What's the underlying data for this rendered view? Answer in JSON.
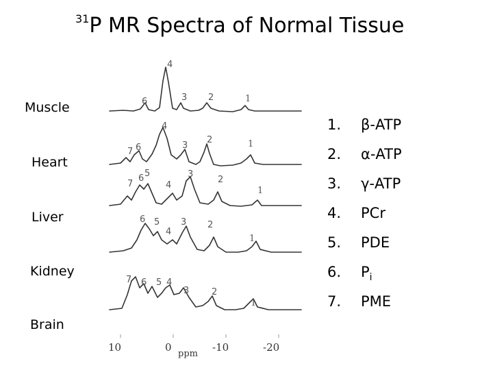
{
  "title": {
    "superscript": "31",
    "text": "P MR Spectra of Normal Tissue"
  },
  "tissues": [
    "Muscle",
    "Heart",
    "Liver",
    "Kidney",
    "Brain"
  ],
  "legend": [
    {
      "num": "1.",
      "label": "β-ATP"
    },
    {
      "num": "2.",
      "label": "α-ATP"
    },
    {
      "num": "3.",
      "label": "γ-ATP"
    },
    {
      "num": "4.",
      "label": "PCr"
    },
    {
      "num": "5.",
      "label": "PDE"
    },
    {
      "num": "6.",
      "label": "P",
      "sub": "i"
    },
    {
      "num": "7.",
      "label": "PME"
    }
  ],
  "axis": {
    "ticks": [
      "10",
      "0",
      "-10",
      "-20"
    ],
    "unit": "ppm"
  },
  "spectra": [
    {
      "tissue": "Muscle",
      "peaks": [
        "4",
        "6",
        "3",
        "2",
        "1"
      ]
    },
    {
      "tissue": "Heart",
      "peaks": [
        "4",
        "7",
        "6",
        "3",
        "2",
        "1"
      ]
    },
    {
      "tissue": "Liver",
      "peaks": [
        "7",
        "6",
        "5",
        "4",
        "3",
        "2",
        "1"
      ]
    },
    {
      "tissue": "Kidney",
      "peaks": [
        "6",
        "5",
        "4",
        "3",
        "2",
        "1"
      ]
    },
    {
      "tissue": "Brain",
      "peaks": [
        "7",
        "6",
        "5",
        "4",
        "3",
        "2",
        "1"
      ]
    }
  ]
}
